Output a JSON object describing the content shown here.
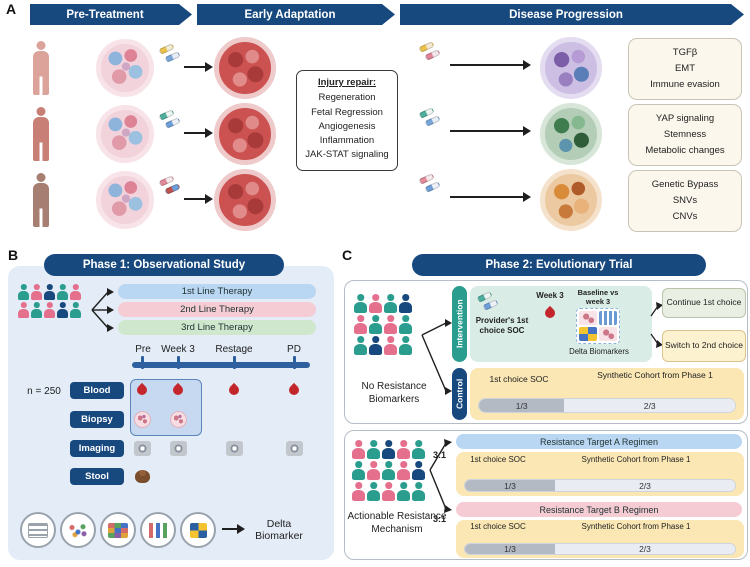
{
  "panel_labels": {
    "a": "A",
    "b": "B",
    "c": "C"
  },
  "panel_a": {
    "stages": [
      "Pre-Treatment",
      "Early Adaptation",
      "Disease Progression"
    ],
    "injury_repair": {
      "title": "Injury repair:",
      "items": [
        "Regeneration",
        "Fetal Regression",
        "Angiogenesis",
        "Inflammation",
        "JAK-STAT signaling"
      ]
    },
    "outcomes": [
      {
        "lines": [
          "TGFβ",
          "EMT",
          "Immune evasion"
        ]
      },
      {
        "lines": [
          "YAP signaling",
          "Stemness",
          "Metabolic changes"
        ]
      },
      {
        "lines": [
          "Genetic Bypass",
          "SNVs",
          "CNVs"
        ]
      }
    ]
  },
  "panel_b": {
    "title": "Phase 1: Observational Study",
    "n_label": "n = 250",
    "therapies": [
      "1st Line Therapy",
      "2nd Line Therapy",
      "3rd Line Therapy"
    ],
    "timepoints": [
      "Pre",
      "Week 3",
      "Restage",
      "PD"
    ],
    "samples": [
      "Blood",
      "Biopsy",
      "Imaging",
      "Stool"
    ],
    "delta_label": "Delta Biomarker"
  },
  "panel_c": {
    "title": "Phase 2: Evolutionary Trial",
    "no_resistance": {
      "group_label": "No Resistance Biomarkers",
      "intervention_label": "Intervention",
      "control_label": "Control",
      "provider_soc": "Provider's 1st choice SOC",
      "week3": "Week 3",
      "baseline_vs": "Baseline vs week 3",
      "delta_biomarkers": "Delta Biomarkers",
      "continue_choice": "Continue 1st choice",
      "switch_choice": "Switch to 2nd choice",
      "soc": "1st choice SOC",
      "cohort": "Synthetic Cohort from Phase 1",
      "frac_soc": "1/3",
      "frac_cohort": "2/3"
    },
    "actionable": {
      "group_label": "Actionable Resistance Mechanism",
      "ratio": "3:1",
      "arms": [
        {
          "regimen": "Resistance Target A Regimen",
          "soc": "1st choice SOC",
          "cohort": "Synthetic Cohort from Phase 1",
          "frac_soc": "1/3",
          "frac_cohort": "2/3"
        },
        {
          "regimen": "Resistance Target B Regimen",
          "soc": "1st choice SOC",
          "cohort": "Synthetic Cohort from Phase 1",
          "frac_soc": "1/3",
          "frac_cohort": "2/3"
        }
      ]
    }
  },
  "colors": {
    "navy": "#17497f",
    "teal": "#2a9d8f",
    "light_blue": "#b9d6f2",
    "light_pink": "#f5ccd4",
    "light_green": "#cfe8cd",
    "panel_bg": "#e3ecf7",
    "yellow_box": "#fae7b4",
    "bar_gray": "#b3bac4",
    "bar_light": "#e9edf3",
    "timeline_blue": "#2e5f9e"
  }
}
